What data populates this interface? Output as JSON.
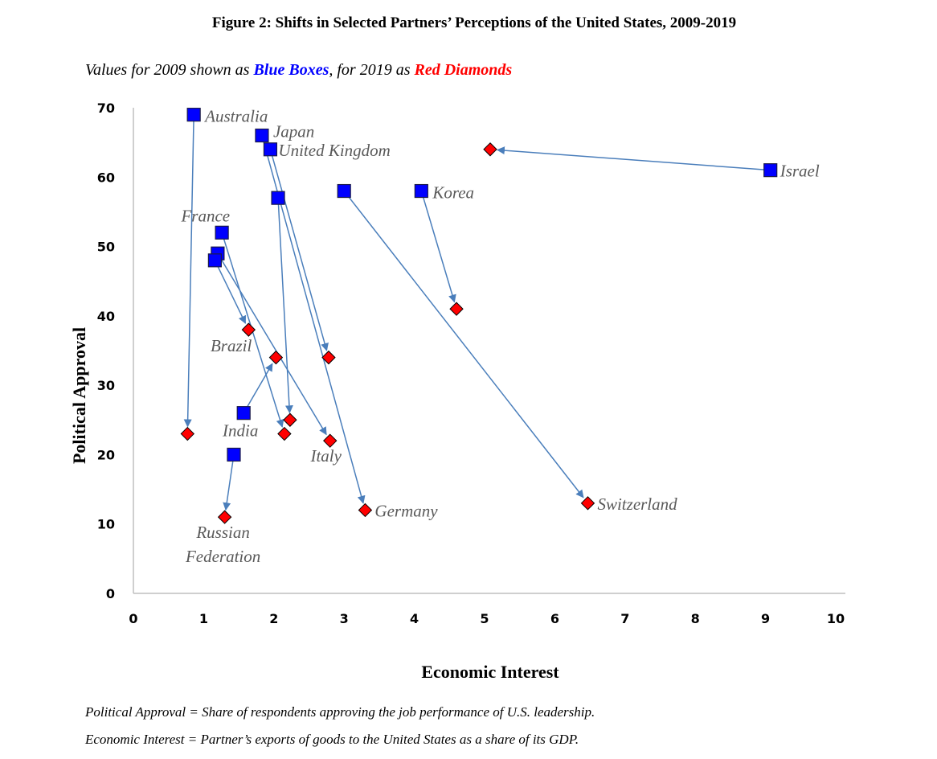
{
  "title": "Figure 2: Shifts in Selected Partners’ Perceptions of the United States, 2009-2019",
  "subtitle": {
    "prefix": "Values for 2009 shown as ",
    "blue_text": "Blue Boxes",
    "middle": ", for 2019 as ",
    "red_text": "Red Diamonds"
  },
  "footnotes": [
    "Political Approval = Share of respondents approving the job performance of U.S. leadership.",
    "Economic Interest = Partner’s exports of goods to the United States as a share of its GDP."
  ],
  "colors": {
    "box_2009": "#0000ff",
    "diamond_2019": "#ff0000",
    "arrow": "#4a7ebb",
    "label": "#595959",
    "axis": "#bfbfbf"
  },
  "chart_data": {
    "type": "scatter",
    "title": "Figure 2: Shifts in Selected Partners’ Perceptions of the United States, 2009-2019",
    "xlabel": "Economic Interest",
    "ylabel": "Political Approval",
    "xlim": [
      0,
      10
    ],
    "ylim": [
      0,
      70
    ],
    "xticks": [
      "0",
      "1",
      "2",
      "3",
      "4",
      "5",
      "6",
      "7",
      "8",
      "9",
      "10"
    ],
    "yticks": [
      "0",
      "10",
      "20",
      "30",
      "40",
      "50",
      "60",
      "70"
    ],
    "grid": false,
    "legend": "subtitle-text",
    "series_names": {
      "from": "2009 (Blue Boxes)",
      "to": "2019 (Red Diamonds)"
    },
    "shifts": [
      {
        "label": "Australia",
        "x2009": 0.86,
        "y2009": 69,
        "x2019": 0.77,
        "y2019": 23
      },
      {
        "label": "Japan",
        "x2009": 1.83,
        "y2009": 66,
        "x2019": 3.3,
        "y2019": 12
      },
      {
        "label": "United Kingdom",
        "x2009": 1.95,
        "y2009": 64,
        "x2019": 2.78,
        "y2019": 34
      },
      {
        "label": "",
        "x2009": 2.06,
        "y2009": 57,
        "x2019": 2.23,
        "y2019": 25
      },
      {
        "label": "Switzerland",
        "x2009": 3.0,
        "y2009": 58,
        "x2019": 6.47,
        "y2019": 13
      },
      {
        "label": "Korea",
        "x2009": 4.1,
        "y2009": 58,
        "x2019": 4.6,
        "y2019": 41
      },
      {
        "label": "Israel",
        "x2009": 9.07,
        "y2009": 61,
        "x2019": 5.08,
        "y2019": 64
      },
      {
        "label": "France",
        "x2009": 1.26,
        "y2009": 52,
        "x2019": 2.15,
        "y2019": 23
      },
      {
        "label": "Italy",
        "x2009": 1.2,
        "y2009": 49,
        "x2019": 2.8,
        "y2019": 22
      },
      {
        "label": "Brazil",
        "x2009": 1.16,
        "y2009": 48,
        "x2019": 1.64,
        "y2019": 38
      },
      {
        "label": "India",
        "x2009": 1.57,
        "y2009": 26,
        "x2019": 2.03,
        "y2019": 34
      },
      {
        "label": "Russian Federation",
        "x2009": 1.43,
        "y2009": 20,
        "x2019": 1.3,
        "y2019": 11
      }
    ],
    "point_labels": [
      {
        "text": "Australia",
        "anchor": "2009",
        "of": "Australia"
      },
      {
        "text": "Japan",
        "anchor": "2009",
        "of": "Japan"
      },
      {
        "text": "United Kingdom",
        "anchor": "2009",
        "of": "United Kingdom"
      },
      {
        "text": "Korea",
        "anchor": "2009",
        "of": "Korea"
      },
      {
        "text": "Israel",
        "anchor": "2009",
        "of": "Israel"
      },
      {
        "text": "France",
        "anchor": "2009",
        "of": "France"
      },
      {
        "text": "Brazil",
        "anchor": "2019",
        "of": "Brazil"
      },
      {
        "text": "India",
        "anchor": "2009",
        "of": "India"
      },
      {
        "text": "Italy",
        "anchor": "2019",
        "of": "Italy"
      },
      {
        "text": "Germany",
        "anchor": "2019",
        "of": "Japan"
      },
      {
        "text": "Switzerland",
        "anchor": "2019",
        "of": "Switzerland"
      },
      {
        "text": "Russian",
        "anchor": "2019",
        "of": "Russian Federation"
      },
      {
        "text": "Federation",
        "anchor": "2019",
        "of": "Russian Federation"
      }
    ]
  }
}
